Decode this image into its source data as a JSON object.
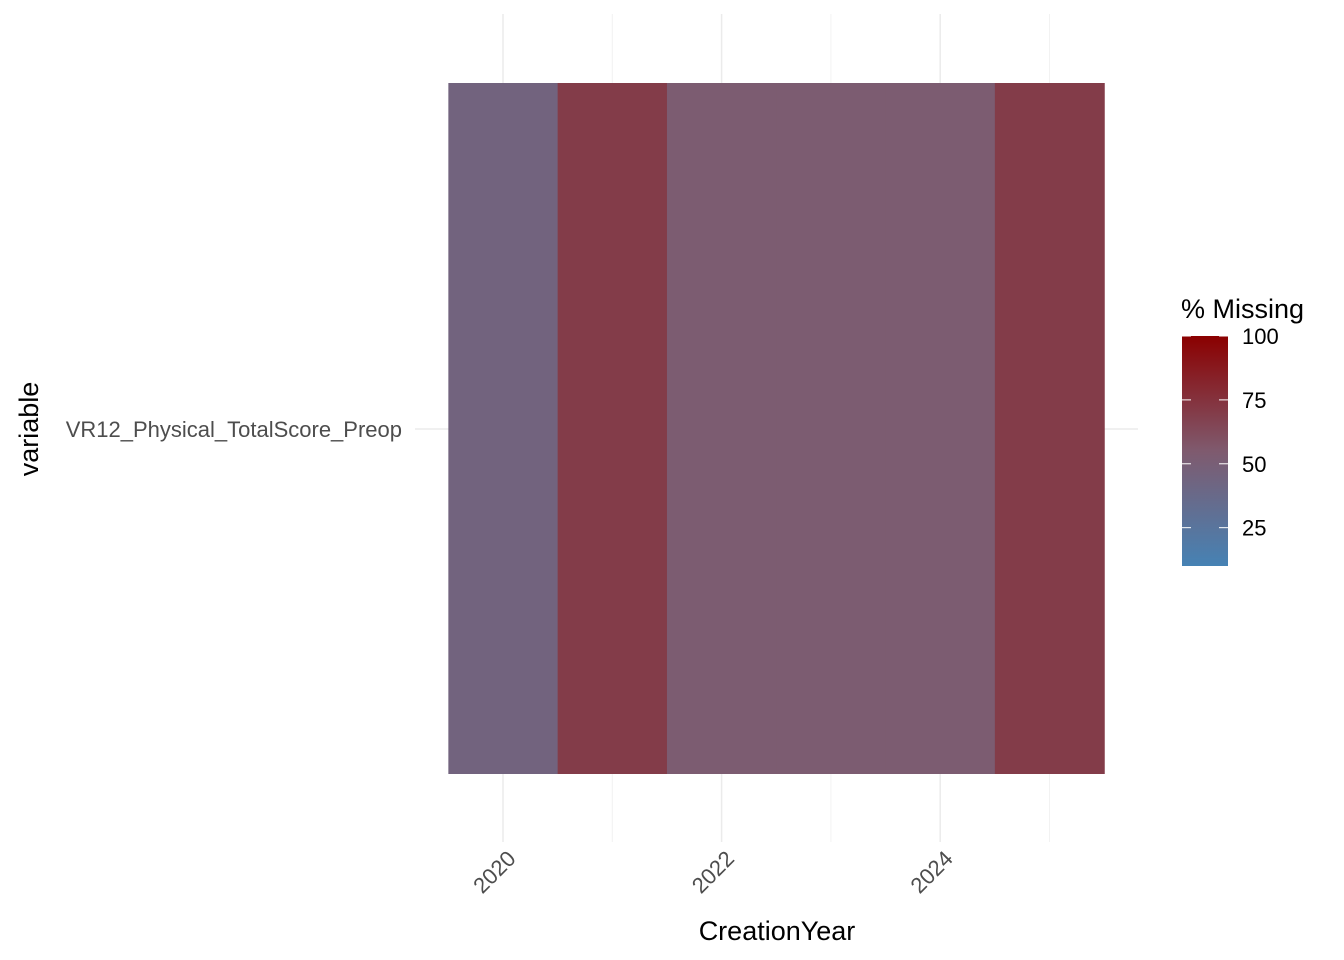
{
  "chart_data": {
    "type": "heatmap",
    "xlabel": "CreationYear",
    "ylabel": "variable",
    "x": [
      2020,
      2021,
      2022,
      2023,
      2024,
      2025
    ],
    "x_ticks": [
      "2020",
      "2022",
      "2024"
    ],
    "y_categories": [
      "VR12_Physical_TotalScore_Preop"
    ],
    "values": [
      [
        45,
        70,
        53,
        53,
        53,
        70
      ]
    ],
    "grid": true,
    "legend": {
      "title": "% Missing",
      "position": "right",
      "range": [
        10,
        100
      ],
      "breaks": [
        "100",
        "75",
        "50",
        "25"
      ],
      "low_color": "#4682B4",
      "mid_color": "#7F5A6E",
      "high_color": "#8B0000"
    }
  }
}
